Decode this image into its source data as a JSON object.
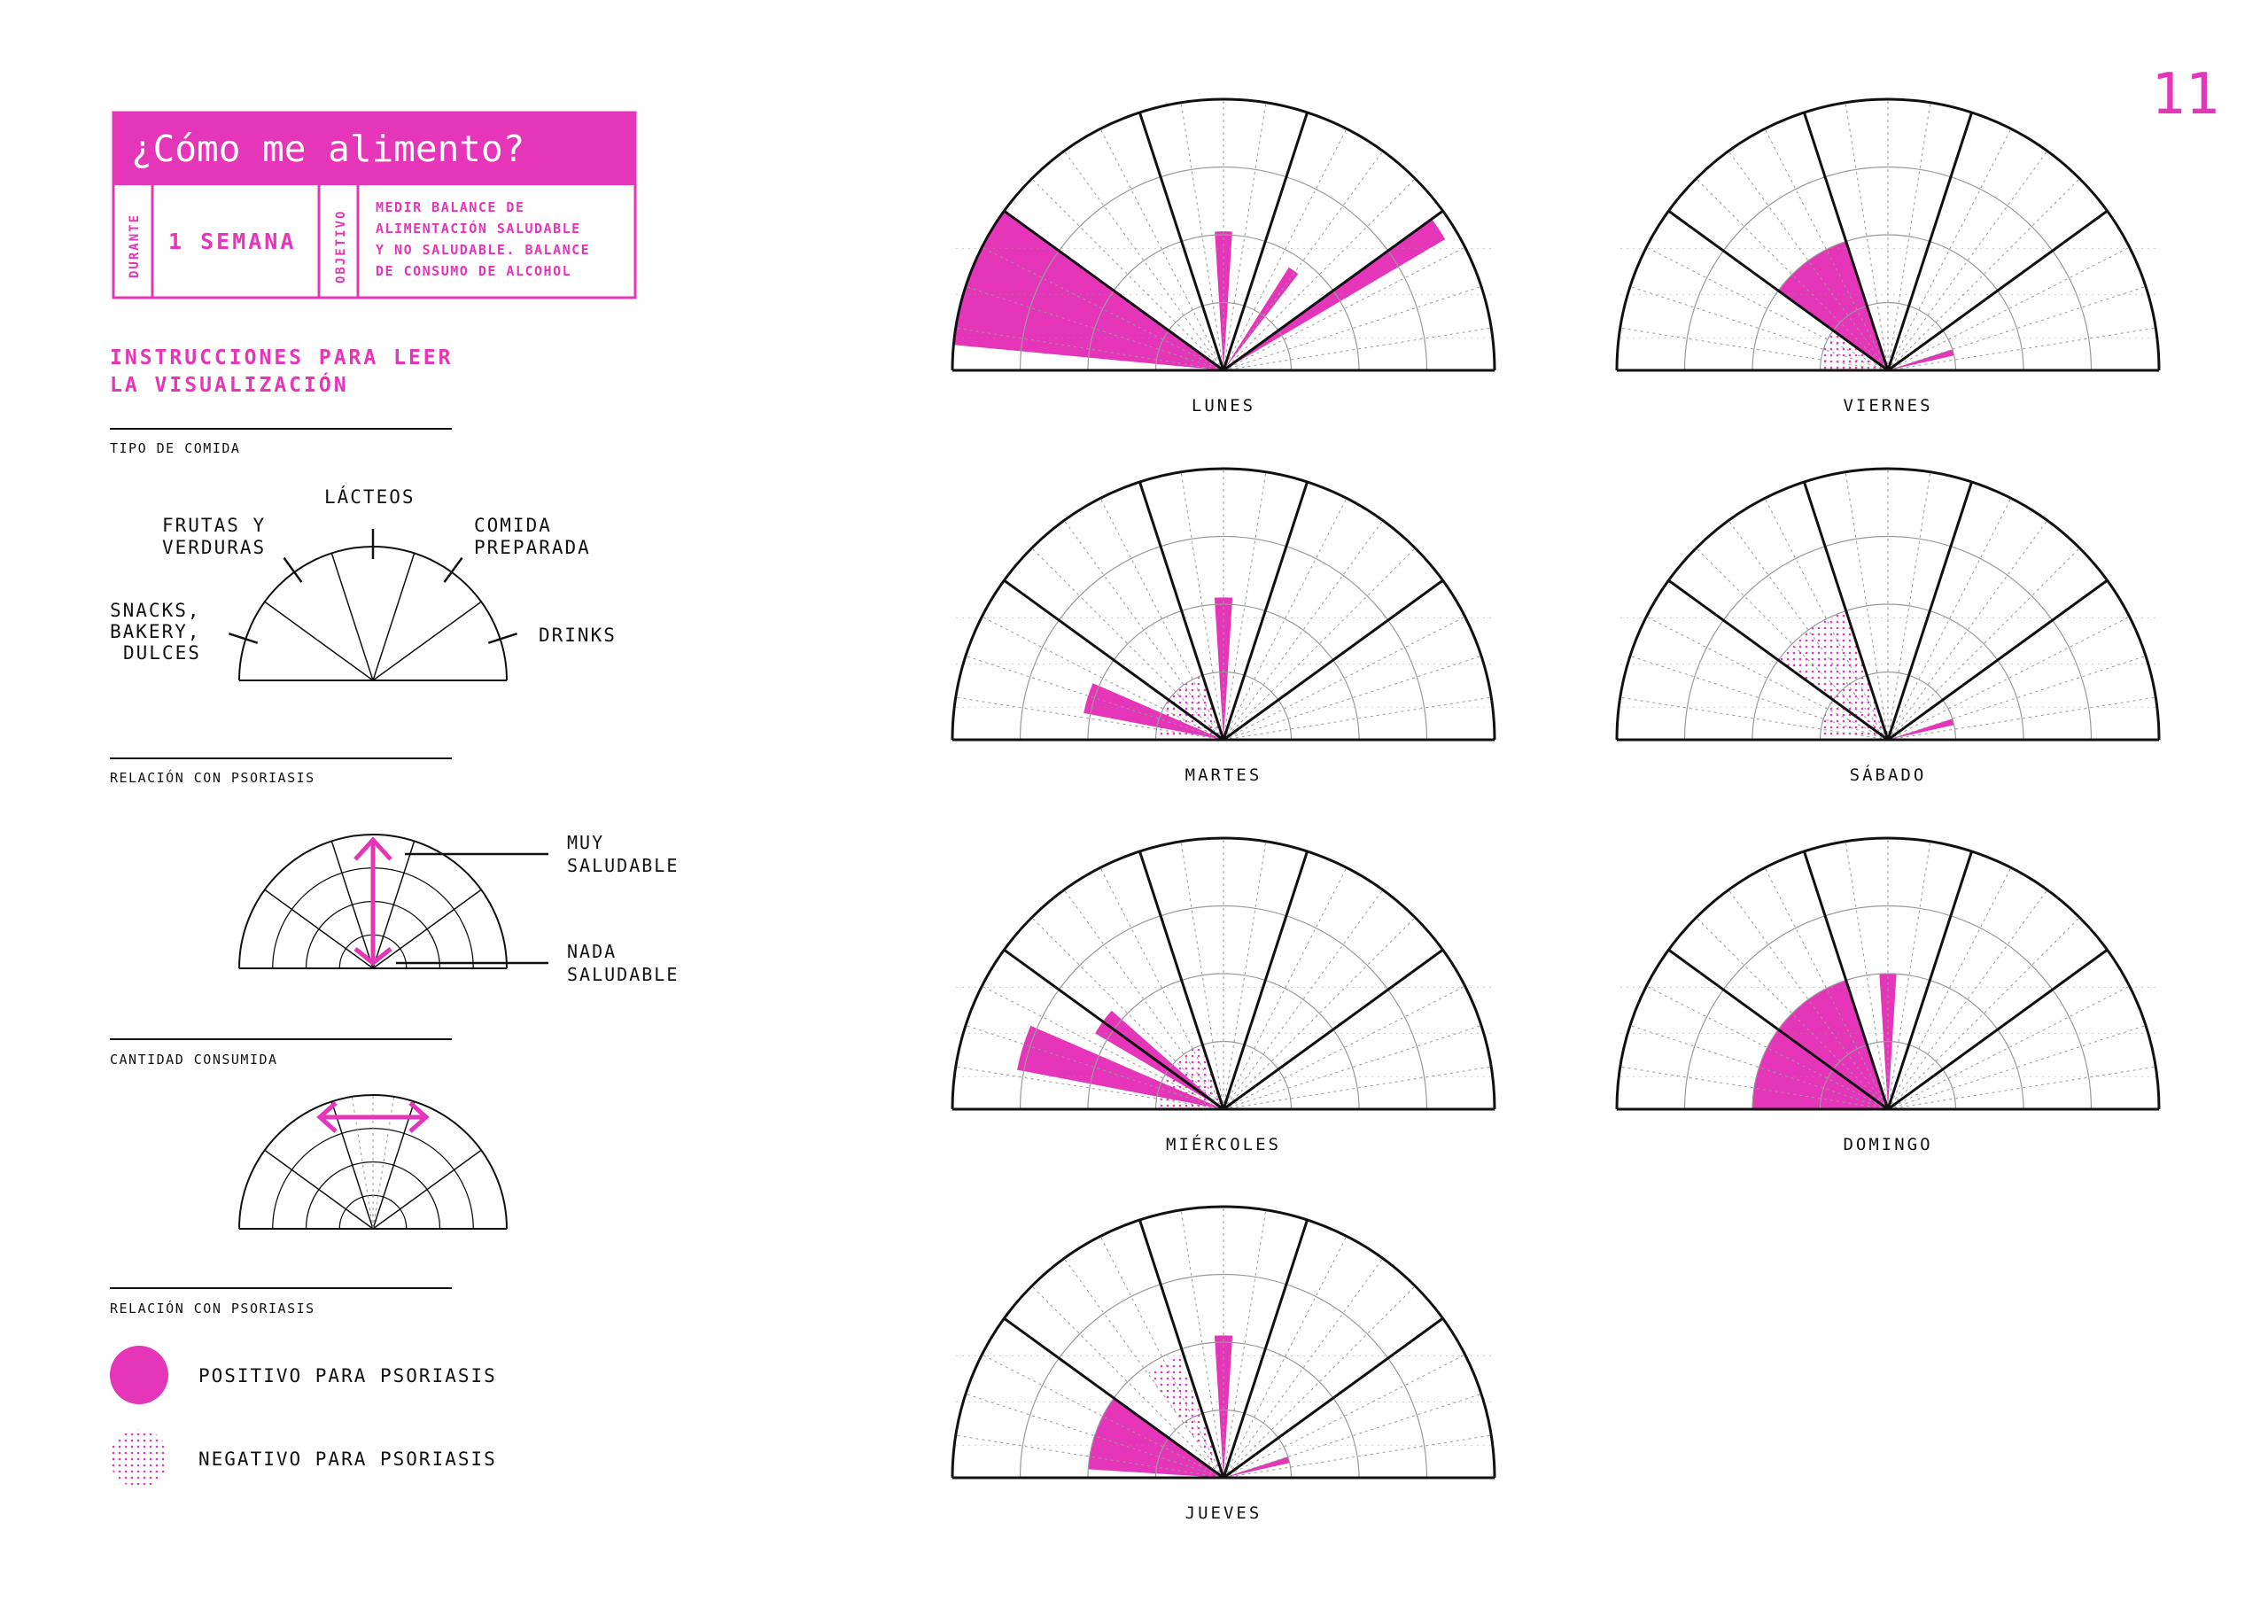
{
  "page_number": "11",
  "header": {
    "title": "¿Cómo me alimento?",
    "durante_label": "DURANTE",
    "durante_value": "1 SEMANA",
    "objetivo_label": "OBJETIVO",
    "objetivo_lines": [
      "MEDIR BALANCE DE",
      "ALIMENTACIÓN SALUDABLE",
      "Y NO SALUDABLE. BALANCE",
      "DE CONSUMO DE ALCOHOL"
    ]
  },
  "instructions": {
    "title_lines": [
      "INSTRUCCIONES PARA LEER",
      "LA VISUALIZACIÓN"
    ],
    "section1_title": "TIPO DE COMIDA",
    "categories": {
      "snacks": [
        "SNACKS,",
        "BAKERY,",
        "DULCES"
      ],
      "frutas": [
        "FRUTAS Y",
        "VERDURAS"
      ],
      "lacteos": [
        "LÁCTEOS"
      ],
      "comida": [
        "COMIDA",
        "PREPARADA"
      ],
      "drinks": [
        "DRINKS"
      ]
    },
    "section2_title": "RELACIÓN CON PSORIASIS",
    "muy_saludable": [
      "MUY",
      "SALUDABLE"
    ],
    "nada_saludable": [
      "NADA",
      "SALUDABLE"
    ],
    "section3_title": "CANTIDAD CONSUMIDA",
    "section4_title": "RELACIÓN CON PSORIASIS",
    "legend_positive": "POSITIVO PARA PSORIASIS",
    "legend_negative": "NEGATIVO PARA PSORIASIS"
  },
  "colors": {
    "accent": "#E535B9",
    "line": "#111111",
    "grid": "#9a9a9a"
  },
  "chart_data": {
    "type": "radial-wedge",
    "category_order": [
      "SNACKS, BAKERY, DULCES",
      "FRUTAS Y VERDURAS",
      "LÁCTEOS",
      "COMIDA PREPARADA",
      "DRINKS"
    ],
    "max_radius": 8,
    "days": [
      {
        "name": "LUNES",
        "wedges": [
          {
            "t0": 0.1,
            "t1": 0.16,
            "r": 6,
            "fill": "solid"
          },
          {
            "t0": 0.8,
            "t1": 0.83,
            "r": 7.6,
            "fill": "solid"
          },
          {
            "t0": 0.48,
            "t1": 0.52,
            "r": 4.1,
            "fill": "solid"
          },
          {
            "t0": 0.68,
            "t1": 0.71,
            "r": 3.6,
            "fill": "solid"
          },
          {
            "t0": 0.03,
            "t1": 0.2,
            "r": 8,
            "fill": "solid"
          }
        ]
      },
      {
        "name": "MARTES",
        "wedges": [
          {
            "t0": 0.06,
            "t1": 0.13,
            "r": 4.2,
            "fill": "solid"
          },
          {
            "t0": 0.48,
            "t1": 0.52,
            "r": 4.2,
            "fill": "solid"
          },
          {
            "t0": 0.0,
            "t1": 0.4,
            "r": 2.0,
            "fill": "dotted"
          }
        ]
      },
      {
        "name": "MIÉRCOLES",
        "wedges": [
          {
            "t0": 0.06,
            "t1": 0.13,
            "r": 6.2,
            "fill": "solid"
          },
          {
            "t0": 0.17,
            "t1": 0.23,
            "r": 4.4,
            "fill": "solid"
          },
          {
            "t0": 0.0,
            "t1": 0.39,
            "r": 2.0,
            "fill": "dotted"
          }
        ]
      },
      {
        "name": "JUEVES",
        "wedges": [
          {
            "t0": 0.9,
            "t1": 0.93,
            "r": 2.0,
            "fill": "solid"
          },
          {
            "t0": 0.48,
            "t1": 0.52,
            "r": 4.2,
            "fill": "solid"
          },
          {
            "t0": 0.02,
            "t1": 0.2,
            "r": 4.0,
            "fill": "solid"
          },
          {
            "t0": 0.3,
            "t1": 0.39,
            "r": 3.8,
            "fill": "dotted"
          }
        ]
      },
      {
        "name": "VIERNES",
        "wedges": [
          {
            "t0": 0.9,
            "t1": 0.93,
            "r": 2.0,
            "fill": "solid"
          },
          {
            "t0": 0.2,
            "t1": 0.4,
            "r": 4.0,
            "fill": "solid"
          },
          {
            "t0": 0.0,
            "t1": 0.2,
            "r": 2.0,
            "fill": "dotted"
          }
        ]
      },
      {
        "name": "SÁBADO",
        "wedges": [
          {
            "t0": 0.9,
            "t1": 0.93,
            "r": 2.0,
            "fill": "solid"
          },
          {
            "t0": 0.2,
            "t1": 0.4,
            "r": 4.0,
            "fill": "dotted"
          },
          {
            "t0": 0.0,
            "t1": 0.2,
            "r": 2.0,
            "fill": "dotted"
          }
        ]
      },
      {
        "name": "DOMINGO",
        "wedges": [
          {
            "t0": 0.48,
            "t1": 0.52,
            "r": 4.0,
            "fill": "solid"
          },
          {
            "t0": 0.0,
            "t1": 0.4,
            "r": 4.0,
            "fill": "solid"
          }
        ]
      }
    ]
  }
}
